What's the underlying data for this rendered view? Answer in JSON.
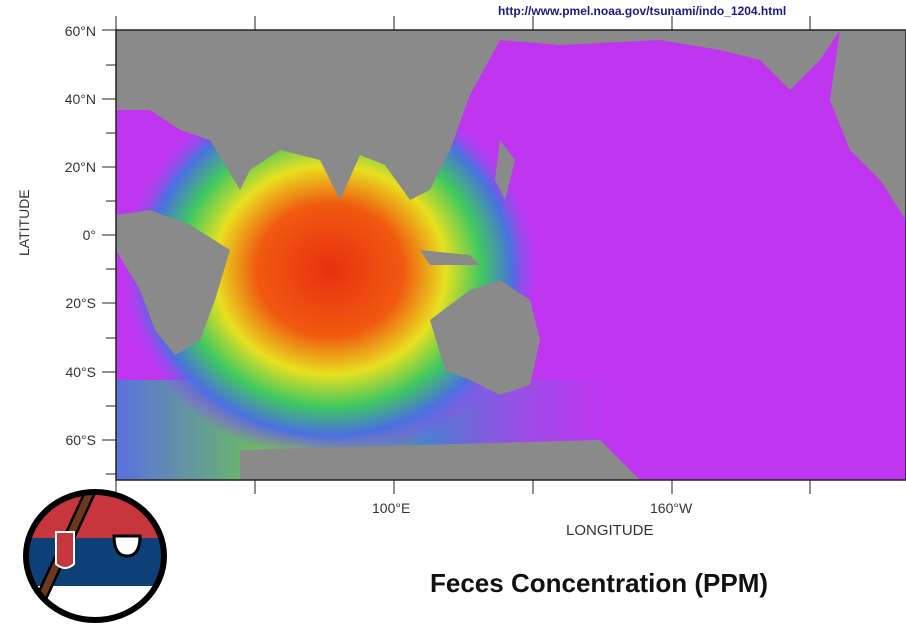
{
  "source_url": "http://www.pmel.noaa.gov/tsunami/indo_1204.html",
  "title": "Feces Concentration (PPM)",
  "axes": {
    "ylabel": "LATITUDE",
    "xlabel": "LONGITUDE",
    "lat_ticks": [
      "60°N",
      "40°N",
      "20°N",
      "0°",
      "20°S",
      "40°S",
      "60°S"
    ],
    "lon_ticks": [
      "100°E",
      "160°W"
    ]
  },
  "colors": {
    "land": "#8a8a8a",
    "ocean_low": "#c035f0",
    "mid": "#4f6fe0",
    "high": "#f0e020",
    "peak": "#e83010"
  },
  "mascot": {
    "type": "serbia-countryball",
    "flag": [
      "#c6363c",
      "#0c4076",
      "#ffffff"
    ]
  }
}
